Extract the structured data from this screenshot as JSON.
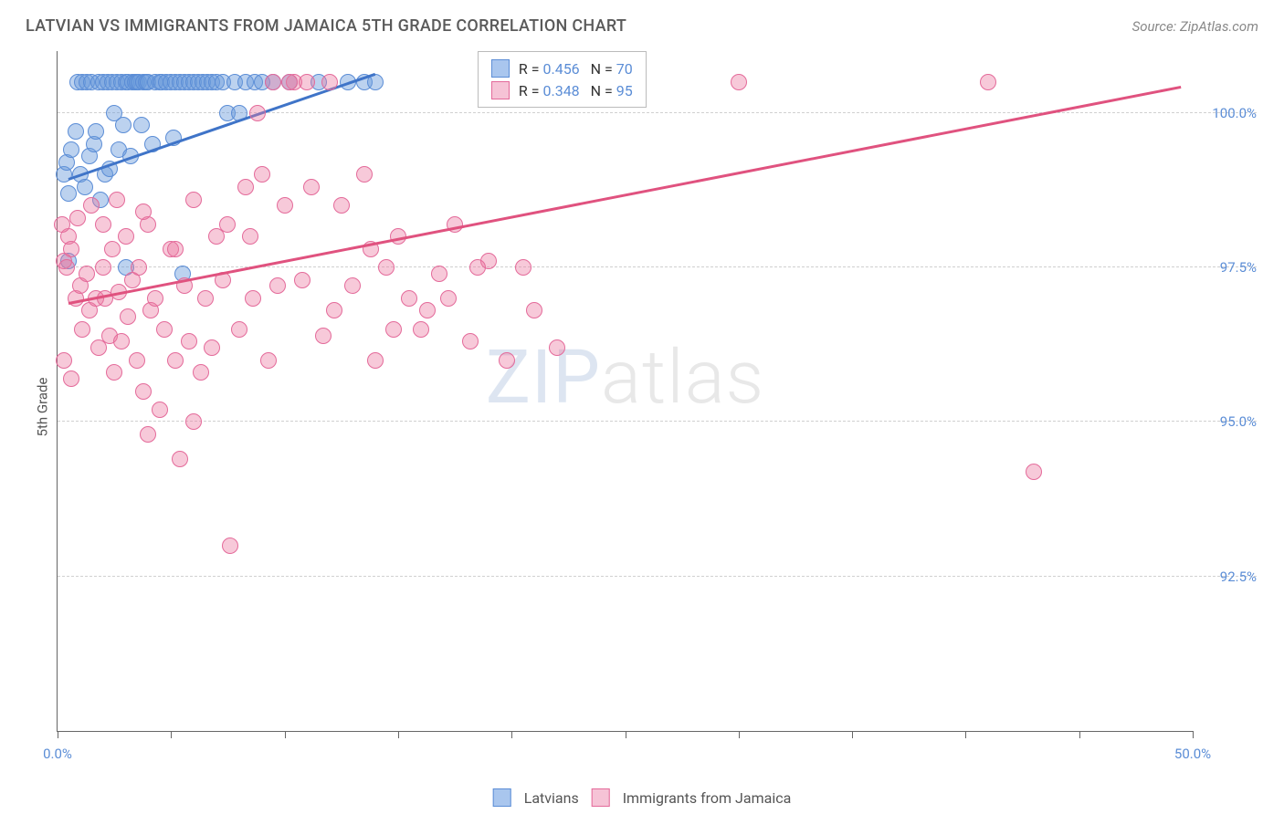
{
  "title": "LATVIAN VS IMMIGRANTS FROM JAMAICA 5TH GRADE CORRELATION CHART",
  "source": "Source: ZipAtlas.com",
  "y_axis_label": "5th Grade",
  "chart": {
    "type": "scatter",
    "xlim": [
      0,
      50
    ],
    "ylim": [
      90,
      101
    ],
    "background_color": "#ffffff",
    "grid_color": "#d0d0d0",
    "axis_color": "#666666",
    "marker_radius": 9,
    "marker_opacity": 0.45,
    "x_ticks": [
      0,
      5,
      10,
      15,
      20,
      25,
      30,
      35,
      40,
      45,
      50
    ],
    "x_tick_labels": {
      "0": "0.0%",
      "50": "50.0%"
    },
    "y_ticks": [
      92.5,
      95.0,
      97.5,
      100.0
    ],
    "y_tick_labels": [
      "92.5%",
      "95.0%",
      "97.5%",
      "100.0%"
    ],
    "series": [
      {
        "name": "Latvians",
        "color_fill": "rgba(106,156,220,0.45)",
        "color_stroke": "#5b8dd6",
        "swatch_fill": "#a9c6ee",
        "swatch_border": "#5b8dd6",
        "R": "0.456",
        "N": "70",
        "trend": {
          "x1": 0.5,
          "y1": 98.9,
          "x2": 14,
          "y2": 100.6,
          "color": "#3f74c8",
          "width": 3
        },
        "points": [
          [
            0.3,
            99.0
          ],
          [
            0.4,
            99.2
          ],
          [
            0.5,
            98.7
          ],
          [
            0.6,
            99.4
          ],
          [
            0.8,
            99.7
          ],
          [
            0.9,
            100.5
          ],
          [
            1.0,
            99.0
          ],
          [
            1.1,
            100.5
          ],
          [
            1.2,
            98.8
          ],
          [
            1.3,
            100.5
          ],
          [
            1.4,
            99.3
          ],
          [
            1.5,
            100.5
          ],
          [
            1.6,
            99.5
          ],
          [
            1.7,
            99.7
          ],
          [
            1.8,
            100.5
          ],
          [
            1.9,
            98.6
          ],
          [
            2.0,
            100.5
          ],
          [
            2.1,
            99.0
          ],
          [
            2.2,
            100.5
          ],
          [
            2.3,
            99.1
          ],
          [
            2.4,
            100.5
          ],
          [
            2.5,
            100.0
          ],
          [
            2.6,
            100.5
          ],
          [
            2.7,
            99.4
          ],
          [
            2.8,
            100.5
          ],
          [
            2.9,
            99.8
          ],
          [
            3.0,
            100.5
          ],
          [
            3.1,
            100.5
          ],
          [
            3.2,
            99.3
          ],
          [
            3.3,
            100.5
          ],
          [
            3.4,
            100.5
          ],
          [
            3.5,
            100.5
          ],
          [
            3.6,
            100.5
          ],
          [
            3.7,
            99.8
          ],
          [
            3.8,
            100.5
          ],
          [
            3.9,
            100.5
          ],
          [
            4.0,
            100.5
          ],
          [
            4.2,
            99.5
          ],
          [
            4.3,
            100.5
          ],
          [
            4.5,
            100.5
          ],
          [
            4.6,
            100.5
          ],
          [
            4.8,
            100.5
          ],
          [
            5.0,
            100.5
          ],
          [
            5.1,
            99.6
          ],
          [
            5.2,
            100.5
          ],
          [
            5.4,
            100.5
          ],
          [
            5.6,
            100.5
          ],
          [
            5.8,
            100.5
          ],
          [
            6.0,
            100.5
          ],
          [
            6.2,
            100.5
          ],
          [
            6.4,
            100.5
          ],
          [
            6.6,
            100.5
          ],
          [
            6.8,
            100.5
          ],
          [
            7.0,
            100.5
          ],
          [
            7.3,
            100.5
          ],
          [
            7.5,
            100.0
          ],
          [
            7.8,
            100.5
          ],
          [
            8.0,
            100.0
          ],
          [
            8.3,
            100.5
          ],
          [
            8.7,
            100.5
          ],
          [
            9.0,
            100.5
          ],
          [
            9.5,
            100.5
          ],
          [
            10.2,
            100.5
          ],
          [
            11.5,
            100.5
          ],
          [
            12.8,
            100.5
          ],
          [
            13.5,
            100.5
          ],
          [
            14.0,
            100.5
          ],
          [
            5.5,
            97.4
          ],
          [
            3.0,
            97.5
          ],
          [
            0.5,
            97.6
          ]
        ]
      },
      {
        "name": "Immigrants from Jamaica",
        "color_fill": "rgba(235,120,160,0.40)",
        "color_stroke": "#e46a9a",
        "swatch_fill": "#f6c3d6",
        "swatch_border": "#e46a9a",
        "R": "0.348",
        "N": "95",
        "trend": {
          "x1": 0.5,
          "y1": 96.9,
          "x2": 49.5,
          "y2": 100.4,
          "color": "#e0527f",
          "width": 3
        },
        "points": [
          [
            0.3,
            97.6
          ],
          [
            0.4,
            97.5
          ],
          [
            0.5,
            98.0
          ],
          [
            0.6,
            97.8
          ],
          [
            0.8,
            97.0
          ],
          [
            0.9,
            98.3
          ],
          [
            1.0,
            97.2
          ],
          [
            1.1,
            96.5
          ],
          [
            1.3,
            97.4
          ],
          [
            1.4,
            96.8
          ],
          [
            1.5,
            98.5
          ],
          [
            1.7,
            97.0
          ],
          [
            1.8,
            96.2
          ],
          [
            2.0,
            97.5
          ],
          [
            2.1,
            97.0
          ],
          [
            2.3,
            96.4
          ],
          [
            2.4,
            97.8
          ],
          [
            2.5,
            95.8
          ],
          [
            2.7,
            97.1
          ],
          [
            2.8,
            96.3
          ],
          [
            3.0,
            98.0
          ],
          [
            3.1,
            96.7
          ],
          [
            3.3,
            97.3
          ],
          [
            3.5,
            96.0
          ],
          [
            3.6,
            97.5
          ],
          [
            3.8,
            95.5
          ],
          [
            4.0,
            98.2
          ],
          [
            4.1,
            96.8
          ],
          [
            4.3,
            97.0
          ],
          [
            4.5,
            95.2
          ],
          [
            4.7,
            96.5
          ],
          [
            5.0,
            97.8
          ],
          [
            5.2,
            96.0
          ],
          [
            5.4,
            94.4
          ],
          [
            5.6,
            97.2
          ],
          [
            5.8,
            96.3
          ],
          [
            6.0,
            98.6
          ],
          [
            6.3,
            95.8
          ],
          [
            6.5,
            97.0
          ],
          [
            6.8,
            96.2
          ],
          [
            7.0,
            98.0
          ],
          [
            7.3,
            97.3
          ],
          [
            7.6,
            93.0
          ],
          [
            8.0,
            96.5
          ],
          [
            8.3,
            98.8
          ],
          [
            8.6,
            97.0
          ],
          [
            9.0,
            99.0
          ],
          [
            9.3,
            96.0
          ],
          [
            9.7,
            97.2
          ],
          [
            10.0,
            98.5
          ],
          [
            10.4,
            100.5
          ],
          [
            10.8,
            97.3
          ],
          [
            11.2,
            98.8
          ],
          [
            11.7,
            96.4
          ],
          [
            12.0,
            100.5
          ],
          [
            12.5,
            98.5
          ],
          [
            13.0,
            97.2
          ],
          [
            13.5,
            99.0
          ],
          [
            14.0,
            96.0
          ],
          [
            14.5,
            97.5
          ],
          [
            15.0,
            98.0
          ],
          [
            15.5,
            97.0
          ],
          [
            16.0,
            96.5
          ],
          [
            16.8,
            97.4
          ],
          [
            17.5,
            98.2
          ],
          [
            18.2,
            96.3
          ],
          [
            19.0,
            97.6
          ],
          [
            19.8,
            96.0
          ],
          [
            20.5,
            97.5
          ],
          [
            21.0,
            96.8
          ],
          [
            22.0,
            96.2
          ],
          [
            30.0,
            100.5
          ],
          [
            41.0,
            100.5
          ],
          [
            43.0,
            94.2
          ],
          [
            9.5,
            100.5
          ],
          [
            10.2,
            100.5
          ],
          [
            11.0,
            100.5
          ],
          [
            8.8,
            100.0
          ],
          [
            0.2,
            98.2
          ],
          [
            0.3,
            96.0
          ],
          [
            0.6,
            95.7
          ],
          [
            2.0,
            98.2
          ],
          [
            4.0,
            94.8
          ],
          [
            6.0,
            95.0
          ],
          [
            7.5,
            98.2
          ],
          [
            8.5,
            98.0
          ],
          [
            12.2,
            96.8
          ],
          [
            13.8,
            97.8
          ],
          [
            14.8,
            96.5
          ],
          [
            16.3,
            96.8
          ],
          [
            17.2,
            97.0
          ],
          [
            18.5,
            97.5
          ],
          [
            5.2,
            97.8
          ],
          [
            3.8,
            98.4
          ],
          [
            2.6,
            98.6
          ]
        ]
      }
    ],
    "legend_box": {
      "R_label": "R =",
      "N_label": "N ="
    },
    "bottom_legend": [
      "Latvians",
      "Immigrants from Jamaica"
    ],
    "watermark": {
      "zip": "ZIP",
      "atlas": "atlas"
    }
  }
}
